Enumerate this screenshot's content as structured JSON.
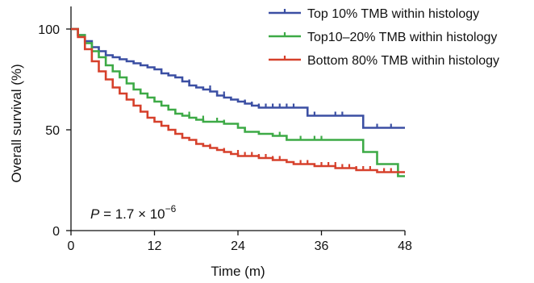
{
  "chart_data": {
    "type": "line",
    "title": "",
    "xlabel": "Time (m)",
    "ylabel": "Overall survival (%)",
    "xlim": [
      0,
      48
    ],
    "ylim": [
      0,
      100
    ],
    "xticks": [
      0,
      12,
      24,
      36,
      48
    ],
    "yticks": [
      0,
      50,
      100
    ],
    "grid": false,
    "legend_position": "top-right",
    "annotation": {
      "prefix": "P",
      "text": " = 1.7 × 10",
      "exponent": "−6"
    },
    "series": [
      {
        "name": "Top 10% TMB within histology",
        "color": "#3b4fa3",
        "steps": [
          [
            0,
            100
          ],
          [
            1,
            97
          ],
          [
            2,
            94
          ],
          [
            3,
            91
          ],
          [
            4,
            89
          ],
          [
            5,
            87
          ],
          [
            6,
            86
          ],
          [
            7,
            85
          ],
          [
            8,
            84
          ],
          [
            9,
            83
          ],
          [
            10,
            82
          ],
          [
            11,
            81
          ],
          [
            12,
            80
          ],
          [
            13,
            78
          ],
          [
            14,
            77
          ],
          [
            15,
            76
          ],
          [
            16,
            74
          ],
          [
            17,
            72
          ],
          [
            18,
            71
          ],
          [
            19,
            70
          ],
          [
            20,
            69
          ],
          [
            21,
            67
          ],
          [
            22,
            66
          ],
          [
            23,
            65
          ],
          [
            24,
            64
          ],
          [
            25,
            63
          ],
          [
            26,
            62
          ],
          [
            27,
            61
          ],
          [
            28,
            61
          ],
          [
            34,
            57
          ],
          [
            42,
            51
          ],
          [
            48,
            51
          ]
        ],
        "censored": [
          [
            17,
            73
          ],
          [
            20,
            70
          ],
          [
            22,
            67
          ],
          [
            25,
            63
          ],
          [
            26,
            62
          ],
          [
            27,
            61
          ],
          [
            28,
            61
          ],
          [
            29,
            61
          ],
          [
            30,
            61
          ],
          [
            31,
            61
          ],
          [
            32,
            61
          ],
          [
            35,
            57
          ],
          [
            38,
            57
          ],
          [
            39,
            57
          ],
          [
            44,
            51
          ],
          [
            46,
            51
          ]
        ]
      },
      {
        "name": "Top10–20% TMB within histology",
        "color": "#3daa46",
        "steps": [
          [
            0,
            100
          ],
          [
            1,
            97
          ],
          [
            2,
            93
          ],
          [
            3,
            89
          ],
          [
            4,
            86
          ],
          [
            5,
            82
          ],
          [
            6,
            79
          ],
          [
            7,
            76
          ],
          [
            8,
            73
          ],
          [
            9,
            70
          ],
          [
            10,
            68
          ],
          [
            11,
            66
          ],
          [
            12,
            64
          ],
          [
            13,
            62
          ],
          [
            14,
            60
          ],
          [
            15,
            58
          ],
          [
            16,
            57
          ],
          [
            17,
            56
          ],
          [
            18,
            55
          ],
          [
            19,
            54
          ],
          [
            20,
            54
          ],
          [
            22,
            53
          ],
          [
            24,
            51
          ],
          [
            25,
            49
          ],
          [
            27,
            48
          ],
          [
            29,
            47
          ],
          [
            31,
            45
          ],
          [
            33,
            45
          ],
          [
            36,
            45
          ],
          [
            42,
            39
          ],
          [
            44,
            33
          ],
          [
            47,
            27
          ],
          [
            48,
            27
          ]
        ],
        "censored": [
          [
            17,
            57
          ],
          [
            19,
            55
          ],
          [
            21,
            54
          ],
          [
            22,
            53
          ],
          [
            30,
            47
          ],
          [
            33,
            45
          ],
          [
            35,
            45
          ],
          [
            36,
            45
          ]
        ]
      },
      {
        "name": "Bottom 80% TMB within histology",
        "color": "#d6402b",
        "steps": [
          [
            0,
            100
          ],
          [
            1,
            96
          ],
          [
            2,
            90
          ],
          [
            3,
            84
          ],
          [
            4,
            79
          ],
          [
            5,
            75
          ],
          [
            6,
            71
          ],
          [
            7,
            68
          ],
          [
            8,
            65
          ],
          [
            9,
            62
          ],
          [
            10,
            59
          ],
          [
            11,
            56
          ],
          [
            12,
            54
          ],
          [
            13,
            52
          ],
          [
            14,
            50
          ],
          [
            15,
            48
          ],
          [
            16,
            46
          ],
          [
            17,
            45
          ],
          [
            18,
            43
          ],
          [
            19,
            42
          ],
          [
            20,
            41
          ],
          [
            21,
            40
          ],
          [
            22,
            39
          ],
          [
            23,
            38
          ],
          [
            24,
            37
          ],
          [
            25,
            37
          ],
          [
            27,
            36
          ],
          [
            29,
            35
          ],
          [
            31,
            34
          ],
          [
            32,
            33
          ],
          [
            33,
            33
          ],
          [
            35,
            32
          ],
          [
            38,
            31
          ],
          [
            40,
            31
          ],
          [
            41,
            30
          ],
          [
            43,
            30
          ],
          [
            44,
            29
          ],
          [
            47,
            29
          ],
          [
            48,
            29
          ]
        ],
        "censored": [
          [
            20,
            41
          ],
          [
            22,
            39
          ],
          [
            24,
            38
          ],
          [
            25,
            37
          ],
          [
            26,
            37
          ],
          [
            27,
            36
          ],
          [
            28,
            36
          ],
          [
            29,
            35
          ],
          [
            30,
            35
          ],
          [
            33,
            33
          ],
          [
            34,
            33
          ],
          [
            36,
            32
          ],
          [
            37,
            32
          ],
          [
            38,
            32
          ],
          [
            39,
            31
          ],
          [
            40,
            31
          ],
          [
            41,
            30
          ],
          [
            42,
            30
          ],
          [
            43,
            30
          ],
          [
            45,
            29
          ],
          [
            46,
            29
          ]
        ]
      }
    ]
  }
}
